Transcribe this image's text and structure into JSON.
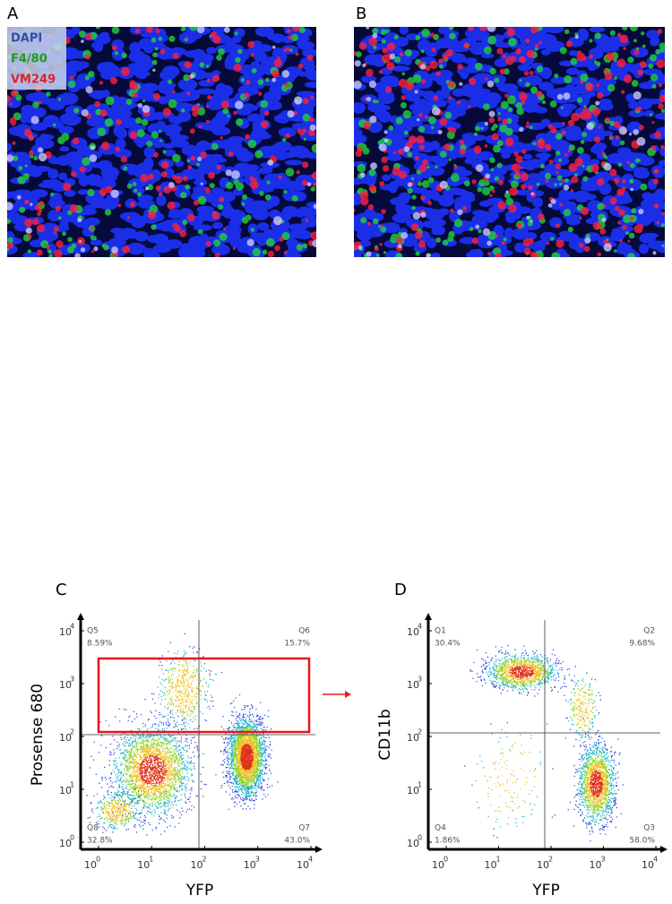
{
  "panels": {
    "A": {
      "label": "A",
      "legend": [
        "DAPI",
        "F4/80",
        "VM249"
      ]
    },
    "B": {
      "label": "B"
    },
    "C": {
      "label": "C",
      "y_label": "Prosense 680",
      "x_label": "YFP",
      "xticks": [
        {
          "base": "10",
          "exp": "0"
        },
        {
          "base": "10",
          "exp": "1"
        },
        {
          "base": "10",
          "exp": "2"
        },
        {
          "base": "10",
          "exp": "3"
        },
        {
          "base": "10",
          "exp": "4"
        }
      ],
      "yticks": [
        {
          "base": "10",
          "exp": "0"
        },
        {
          "base": "10",
          "exp": "1"
        },
        {
          "base": "10",
          "exp": "2"
        },
        {
          "base": "10",
          "exp": "3"
        },
        {
          "base": "10",
          "exp": "4"
        }
      ],
      "quadrants": [
        {
          "name": "Q5",
          "percent": "8.59%"
        },
        {
          "name": "Q6",
          "percent": "15.7%"
        },
        {
          "name": "Q8",
          "percent": "32.8%"
        },
        {
          "name": "Q7",
          "percent": "43.0%"
        }
      ]
    },
    "D": {
      "label": "D",
      "y_label": "CD11b",
      "x_label": "YFP",
      "xticks": [
        {
          "base": "10",
          "exp": "0"
        },
        {
          "base": "10",
          "exp": "1"
        },
        {
          "base": "10",
          "exp": "2"
        },
        {
          "base": "10",
          "exp": "3"
        },
        {
          "base": "10",
          "exp": "4"
        }
      ],
      "yticks": [
        {
          "base": "10",
          "exp": "0"
        },
        {
          "base": "10",
          "exp": "1"
        },
        {
          "base": "10",
          "exp": "2"
        },
        {
          "base": "10",
          "exp": "3"
        },
        {
          "base": "10",
          "exp": "4"
        }
      ],
      "quadrants": [
        {
          "name": "Q1",
          "percent": "30.4%"
        },
        {
          "name": "Q2",
          "percent": "9.68%"
        },
        {
          "name": "Q4",
          "percent": "1.86%"
        },
        {
          "name": "Q3",
          "percent": "58.0%"
        }
      ]
    }
  }
}
